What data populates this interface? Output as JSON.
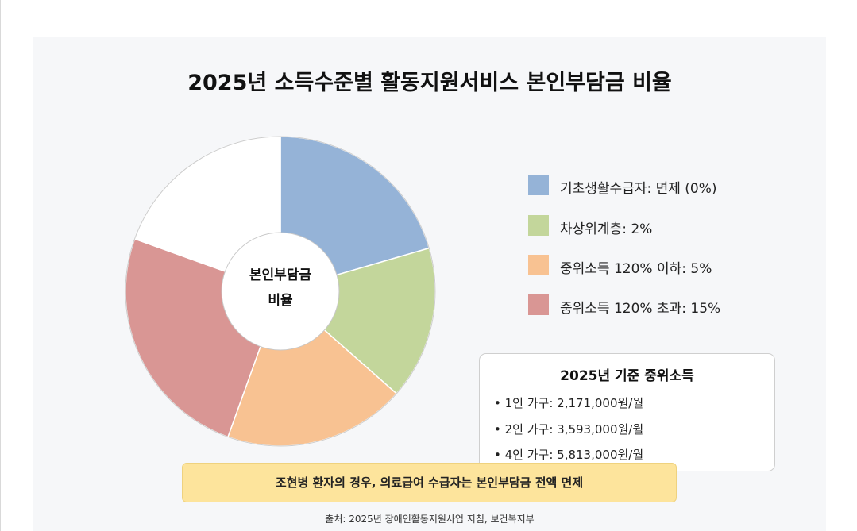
{
  "title": "2025년 소득수준별 활동지원서비스 본인부담금 비율",
  "chart_data": {
    "type": "pie",
    "center_label": [
      "본인부담금",
      "비율"
    ],
    "slices": [
      {
        "label": "기초생활수급자: 면제 (0%)",
        "share": 0.205,
        "color": "#95b3d7"
      },
      {
        "label": "차상위계층: 2%",
        "share": 0.16,
        "color": "#c3d69b"
      },
      {
        "label": "중위소득 120% 이하: 5%",
        "share": 0.19,
        "color": "#f8c292"
      },
      {
        "label": "중위소득 120% 초과: 15%",
        "share": 0.25,
        "color": "#d99694"
      },
      {
        "label": "",
        "share": 0.195,
        "color": "#ffffff"
      }
    ]
  },
  "income_box": {
    "title": "2025년 기준 중위소득",
    "lines": [
      "• 1인 가구: 2,171,000원/월",
      "• 2인 가구: 3,593,000원/월",
      "• 4인 가구: 5,813,000원/월"
    ]
  },
  "note": "조현병 환자의 경우, 의료급여 수급자는 본인부담금 전액 면제",
  "source": "출처: 2025년 장애인활동지원사업 지침, 보건복지부"
}
